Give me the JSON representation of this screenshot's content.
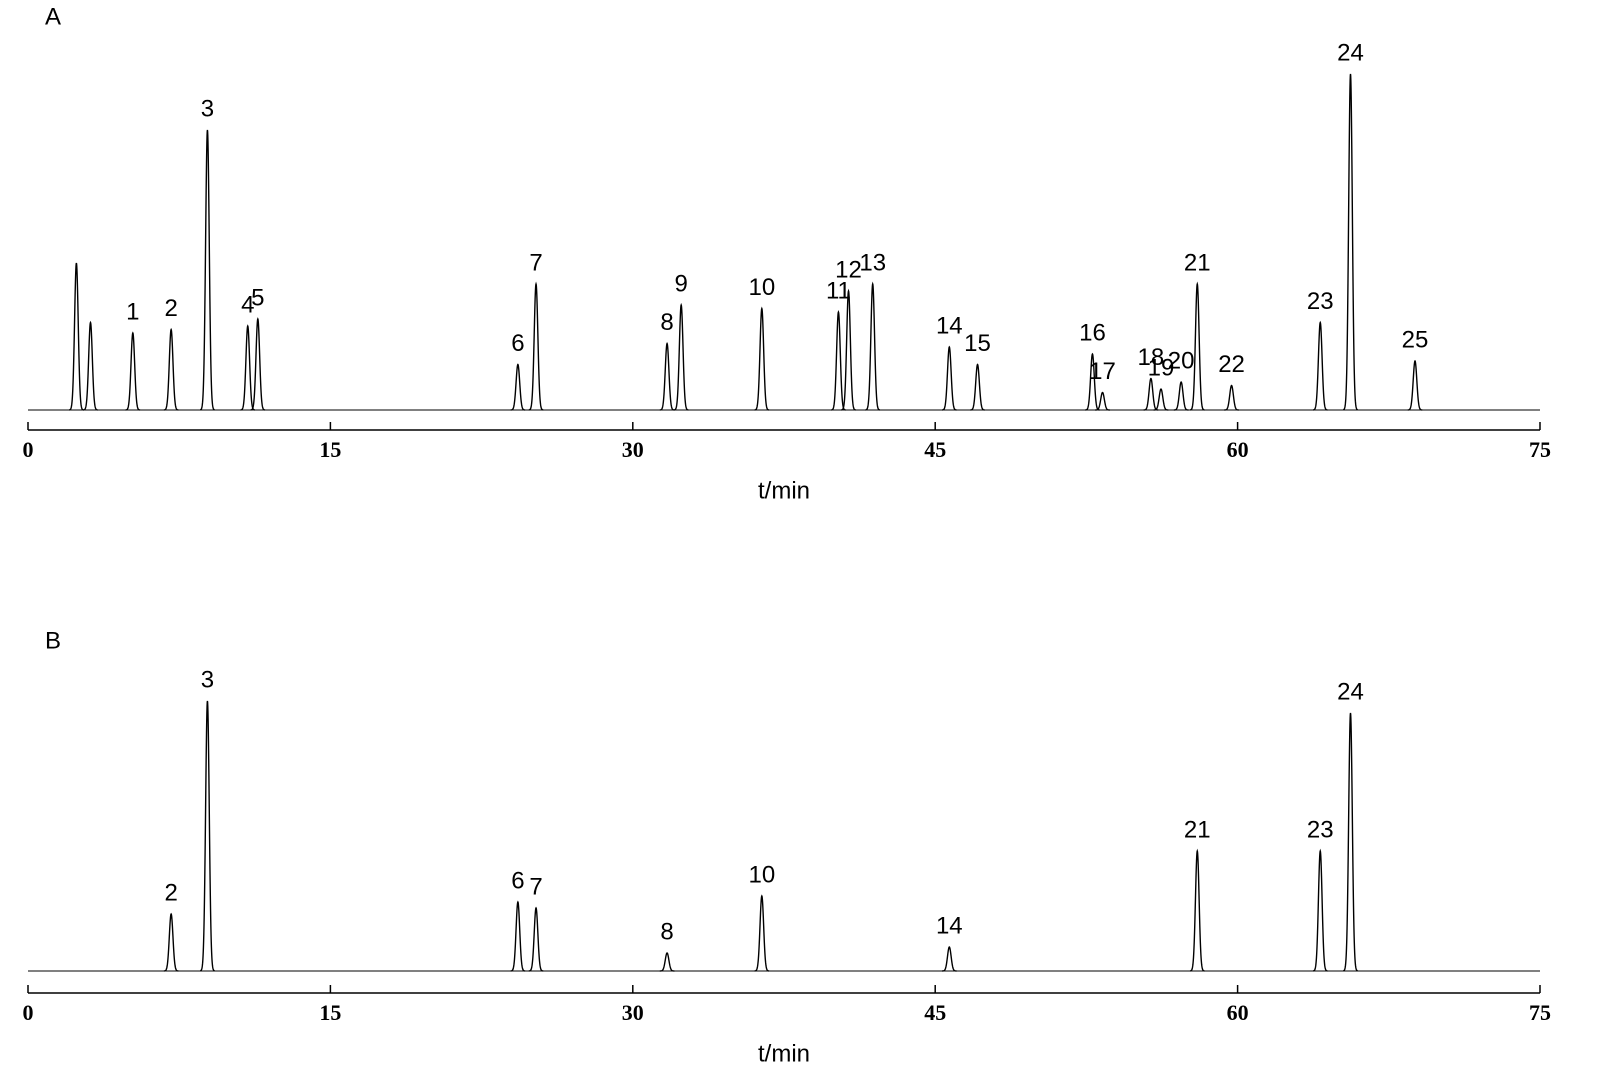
{
  "chart_data": [
    {
      "type": "chromatogram",
      "title": "A",
      "xlabel": "t/min",
      "color": "#000000",
      "x": [
        2.4,
        3.1,
        5.2,
        7.1,
        8.9,
        10.9,
        11.4,
        24.3,
        25.2,
        31.7,
        32.4,
        36.4,
        40.2,
        40.7,
        41.9,
        45.7,
        47.1,
        52.8,
        53.3,
        55.7,
        56.2,
        57.2,
        58.0,
        59.7,
        64.1,
        65.6,
        68.8
      ],
      "values": [
        42,
        25,
        22,
        23,
        80,
        24,
        26,
        13,
        36,
        19,
        30,
        29,
        28,
        34,
        36,
        18,
        13,
        16,
        5,
        9,
        6,
        8,
        36,
        7,
        25,
        96,
        14
      ],
      "labels": [
        null,
        null,
        "1",
        "2",
        "3",
        "4",
        "5",
        "6",
        "7",
        "8",
        "9",
        "10",
        "11",
        "12",
        "13",
        "14",
        "15",
        "16",
        "17",
        "18",
        "19",
        "20",
        "21",
        "22",
        "23",
        "24",
        "25"
      ],
      "xlim": [
        0,
        75
      ],
      "xticks": [
        0,
        15,
        30,
        45,
        60,
        75
      ],
      "ylim": [
        0,
        100
      ]
    },
    {
      "type": "chromatogram",
      "title": "B",
      "xlabel": "t/min",
      "color": "#000000",
      "x": [
        7.1,
        8.9,
        24.3,
        25.2,
        31.7,
        36.4,
        45.7,
        58.0,
        64.1,
        65.6
      ],
      "values": [
        19,
        90,
        23,
        21,
        6,
        25,
        8,
        40,
        40,
        86
      ],
      "labels": [
        "2",
        "3",
        "6",
        "7",
        "8",
        "10",
        "14",
        "21",
        "23",
        "24"
      ],
      "xlim": [
        0,
        75
      ],
      "xticks": [
        0,
        15,
        30,
        45,
        60,
        75
      ],
      "ylim": [
        0,
        100
      ]
    }
  ]
}
